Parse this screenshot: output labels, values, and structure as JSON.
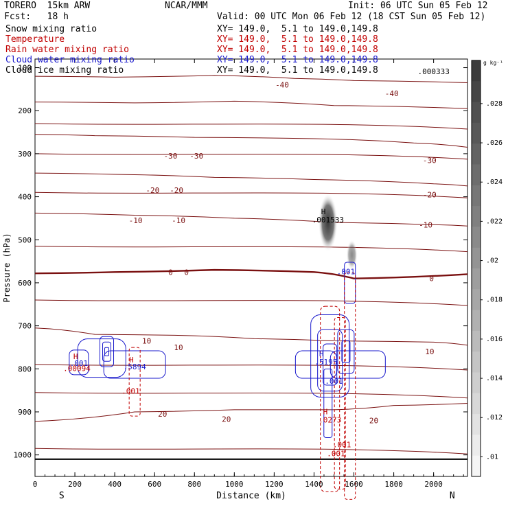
{
  "header": {
    "model": "TORERO  15km ARW",
    "org": "NCAR/MMM",
    "init": "Init: 06 UTC Sun 05 Feb 12",
    "fcst": "Fcst:   18 h",
    "valid": "Valid: 00 UTC Mon 06 Feb 12 (18 CST Sun 05 Feb 12)"
  },
  "fields": [
    {
      "name": "Snow mixing ratio",
      "xy": "XY= 149.0,  5.1 to 149.0,149.8",
      "color": "#000000"
    },
    {
      "name": "Temperature",
      "xy": "XY= 149.0,  5.1 to 149.0,149.8",
      "color": "#c00000"
    },
    {
      "name": "Rain water mixing ratio",
      "xy": "XY= 149.0,  5.1 to 149.0,149.8",
      "color": "#c00000"
    },
    {
      "name": "Cloud water mixing ratio",
      "xy": "XY= 149.0,  5.1 to 149.0,149.8",
      "color": "#1a1acc"
    },
    {
      "name": "Cloud ice mixing ratio",
      "xy": "XY= 149.0,  5.1 to 149.0,149.8",
      "color": "#000000"
    }
  ],
  "chart_data": {
    "type": "contour",
    "xlabel": "Distance (km)",
    "ylabel": "Pressure (hPa)",
    "xlim": [
      0,
      2170
    ],
    "ylim": [
      1050,
      100
    ],
    "xticks": [
      0,
      200,
      400,
      600,
      800,
      1000,
      1200,
      1400,
      1600,
      1800,
      2000
    ],
    "yticks": [
      100,
      200,
      300,
      400,
      500,
      600,
      700,
      800,
      900,
      1000
    ],
    "ytick_labels": [
      "100",
      "200",
      "300",
      "400",
      "500",
      "600",
      "700",
      "800",
      "900",
      "1000"
    ],
    "left_end_label": "S",
    "right_end_label": "N",
    "colorbar": {
      "unit": "g kg⁻¹",
      "ticks": [
        ".01",
        ".012",
        ".014",
        ".016",
        ".018",
        ".02",
        ".022",
        ".024",
        ".026",
        ".028"
      ],
      "tick_values": [
        0.01,
        0.012,
        0.014,
        0.016,
        0.018,
        0.02,
        0.022,
        0.024,
        0.026,
        0.028
      ],
      "range": [
        0.009,
        0.0302
      ]
    },
    "temperature_contours": [
      {
        "label": "-40",
        "points": [
          [
            0,
            120
          ],
          [
            400,
            122
          ],
          [
            900,
            118
          ],
          [
            1300,
            125
          ],
          [
            1600,
            130
          ],
          [
            2170,
            135
          ]
        ],
        "labels_at": [
          [
            1240,
            140
          ],
          [
            1790,
            160
          ]
        ]
      },
      {
        "label": "",
        "points": [
          [
            0,
            180
          ],
          [
            500,
            182
          ],
          [
            1000,
            178
          ],
          [
            1500,
            188
          ],
          [
            2170,
            195
          ]
        ],
        "labels_at": []
      },
      {
        "label": "-30",
        "points": [
          [
            0,
            255
          ],
          [
            300,
            258
          ],
          [
            800,
            262
          ],
          [
            1400,
            265
          ],
          [
            1900,
            275
          ],
          [
            2170,
            285
          ]
        ],
        "labels_at": [
          [
            680,
            305
          ],
          [
            810,
            305
          ],
          [
            1980,
            315
          ]
        ]
      },
      {
        "label": "-20",
        "points": [
          [
            0,
            345
          ],
          [
            400,
            348
          ],
          [
            900,
            355
          ],
          [
            1400,
            360
          ],
          [
            2000,
            370
          ],
          [
            2170,
            375
          ]
        ],
        "labels_at": [
          [
            590,
            385
          ],
          [
            710,
            385
          ],
          [
            1980,
            395
          ]
        ]
      },
      {
        "label": "-10",
        "points": [
          [
            0,
            438
          ],
          [
            500,
            443
          ],
          [
            1000,
            450
          ],
          [
            1500,
            460
          ],
          [
            2000,
            465
          ],
          [
            2170,
            468
          ]
        ],
        "labels_at": [
          [
            505,
            455
          ],
          [
            720,
            455
          ],
          [
            1960,
            465
          ]
        ]
      },
      {
        "label": "0",
        "points": [
          [
            0,
            578
          ],
          [
            400,
            575
          ],
          [
            900,
            570
          ],
          [
            1400,
            575
          ],
          [
            1600,
            590
          ],
          [
            2170,
            580
          ]
        ],
        "labels_at": [
          [
            680,
            575
          ],
          [
            760,
            575
          ],
          [
            1990,
            590
          ]
        ],
        "bold": true
      },
      {
        "label": "10",
        "points": [
          [
            0,
            705
          ],
          [
            300,
            720
          ],
          [
            700,
            722
          ],
          [
            1100,
            730
          ],
          [
            1500,
            735
          ],
          [
            2000,
            738
          ],
          [
            2170,
            745
          ]
        ],
        "labels_at": [
          [
            560,
            735
          ],
          [
            720,
            750
          ],
          [
            1980,
            760
          ]
        ]
      },
      {
        "label": "20",
        "points": [
          [
            0,
            922
          ],
          [
            500,
            900
          ],
          [
            1000,
            895
          ],
          [
            1500,
            895
          ],
          [
            1800,
            885
          ],
          [
            2170,
            880
          ]
        ],
        "labels_at": [
          [
            640,
            905
          ],
          [
            960,
            917
          ],
          [
            1700,
            920
          ]
        ]
      }
    ],
    "snow_max": {
      "x": 1470,
      "p": 460,
      "label": "H",
      "value": ".001533"
    },
    "cloud_water_max": {
      "x": 1460,
      "p": 790,
      "label": "H",
      "value": ".5195"
    },
    "rain_max": {
      "x": 1480,
      "p": 925,
      "label": "H",
      "value": ".0273"
    },
    "misc_labels": [
      {
        "text": ".001",
        "x": 1560,
        "p": 580,
        "color": "#1a1acc"
      },
      {
        "text": ".001",
        "x": 1500,
        "p": 835,
        "color": "#1a1acc"
      },
      {
        "text": ".001",
        "x": 1540,
        "p": 982,
        "color": "#c00000"
      },
      {
        "text": ".001",
        "x": 1510,
        "p": 1003,
        "color": "#c00000"
      },
      {
        "text": ".001",
        "x": 480,
        "p": 858,
        "color": "#c00000"
      },
      {
        "text": ".001",
        "x": 220,
        "p": 793,
        "color": "#1a1acc"
      },
      {
        "text": ".00094",
        "x": 210,
        "p": 805,
        "color": "#c00000"
      },
      {
        "text": ".5894",
        "x": 500,
        "p": 801,
        "color": "#1a1acc"
      },
      {
        "text": ".000333",
        "x": 2000,
        "p": 115,
        "color": "#000000"
      }
    ]
  }
}
